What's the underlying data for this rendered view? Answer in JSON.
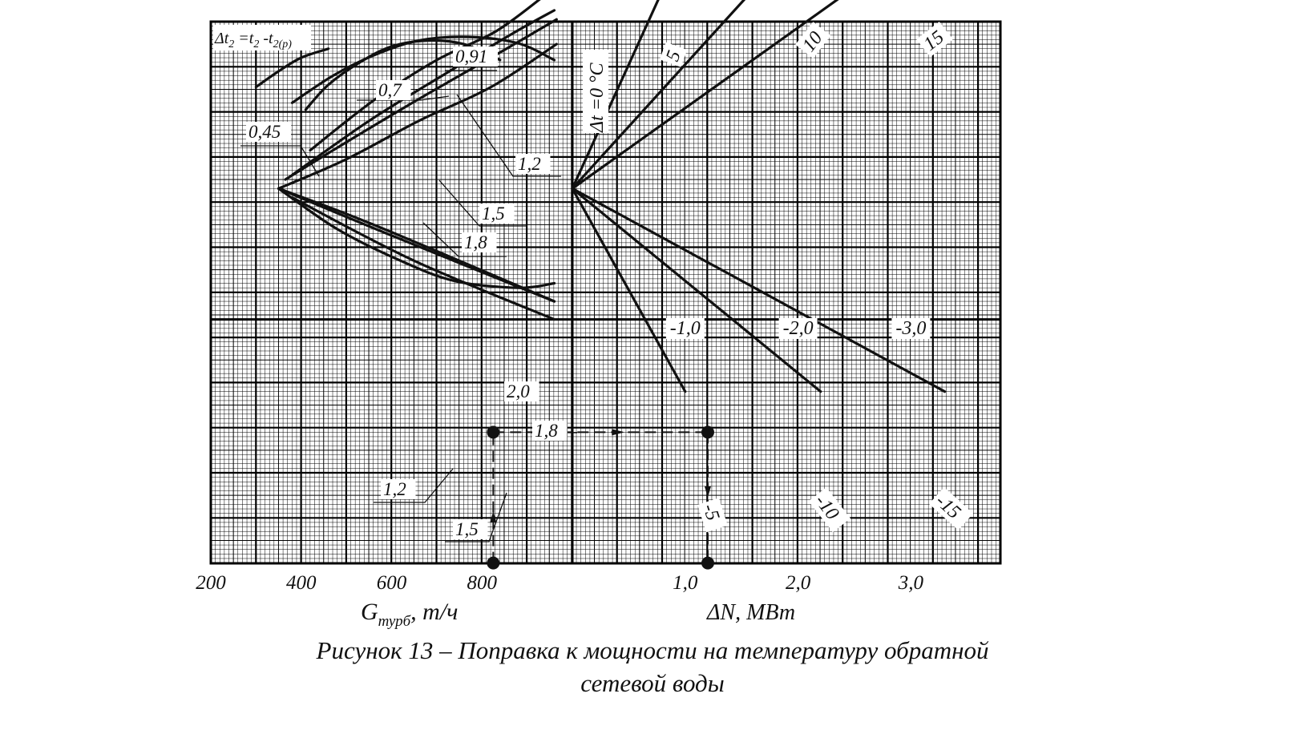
{
  "caption": {
    "line1": "Рисунок 13 – Поправка к мощности на температуру обратной",
    "line2": "сетевой воды"
  },
  "chart_data": {
    "type": "line",
    "grid": true,
    "left_panel": {
      "xlabel_main": "G",
      "xlabel_sub": "турб",
      "xlabel_unit": ", т/ч",
      "xlim": [
        200,
        1000
      ],
      "x_ticks": [
        "200",
        "400",
        "600",
        "800"
      ],
      "formula": {
        "a": "Δt",
        "a_sub": "2",
        "b": " =t",
        "b_sub": "2",
        "c": " -t",
        "c_sub": "2(р)"
      },
      "upper_curves": [
        {
          "label": "0,45",
          "points": [
            [
              300,
              1.45
            ],
            [
              350,
              1.1
            ],
            [
              400,
              0.8
            ],
            [
              460,
              0.6
            ]
          ]
        },
        {
          "label": "0,7",
          "points": [
            [
              410,
              1.95
            ],
            [
              460,
              1.4
            ],
            [
              530,
              0.9
            ],
            [
              600,
              0.55
            ],
            [
              680,
              0.42
            ],
            [
              760,
              0.5
            ],
            [
              840,
              0.85
            ]
          ]
        },
        {
          "label": "0,91",
          "points": [
            [
              380,
              1.8
            ],
            [
              470,
              1.2
            ],
            [
              560,
              0.75
            ],
            [
              660,
              0.42
            ],
            [
              770,
              0.34
            ],
            [
              880,
              0.48
            ],
            [
              960,
              0.85
            ]
          ]
        },
        {
          "label": "0,91",
          "points": [
            [
              420,
              2.85
            ],
            [
              560,
              1.75
            ],
            [
              700,
              0.85
            ],
            [
              830,
              0.22
            ],
            [
              935,
              -0.55
            ]
          ]
        },
        {
          "label": "1,2",
          "points": [
            [
              380,
              3.4
            ],
            [
              550,
              2.2
            ],
            [
              720,
              1.15
            ],
            [
              870,
              0.25
            ],
            [
              960,
              -0.25
            ]
          ]
        },
        {
          "label": "1,5",
          "points": [
            [
              365,
              3.5
            ],
            [
              520,
              2.55
            ],
            [
              680,
              1.6
            ],
            [
              820,
              0.8
            ],
            [
              965,
              -0.05
            ]
          ]
        },
        {
          "label": "1,8",
          "points": [
            [
              350,
              3.7
            ],
            [
              500,
              3.05
            ],
            [
              660,
              2.2
            ],
            [
              820,
              1.45
            ],
            [
              965,
              0.5
            ]
          ]
        }
      ],
      "lower_curves": [
        {
          "label": "2,0",
          "points": [
            [
              350,
              3.7
            ],
            [
              560,
              4.5
            ],
            [
              960,
              6.2
            ]
          ]
        },
        {
          "label": "1,8",
          "points": [
            [
              350,
              3.7
            ],
            [
              590,
              4.7
            ],
            [
              960,
              6.2
            ]
          ]
        },
        {
          "label": "1,5",
          "points": [
            [
              380,
              3.9
            ],
            [
              650,
              5.3
            ],
            [
              960,
              6.6
            ]
          ]
        },
        {
          "label": "1,2",
          "points": [
            [
              350,
              3.7
            ],
            [
              480,
              4.6
            ],
            [
              620,
              5.3
            ],
            [
              740,
              5.75
            ],
            [
              880,
              5.9
            ],
            [
              960,
              5.8
            ]
          ]
        }
      ]
    },
    "right_panel": {
      "xlabel": "ΔN, МВт",
      "origin_label": "Δt  =0 °C",
      "x_ticks_bottom": [
        "1,0",
        "2,0",
        "3,0"
      ],
      "x_ticks_mid": [
        "-1,0",
        "-2,0",
        "-3,0"
      ],
      "lines": [
        {
          "label": "5",
          "from": [
            0,
            3.7
          ],
          "to": [
            1.2,
            -2.9
          ]
        },
        {
          "label": "10",
          "from": [
            0,
            3.7
          ],
          "to": [
            2.4,
            -2.9
          ]
        },
        {
          "label": "15",
          "from": [
            0,
            3.7
          ],
          "to": [
            3.7,
            -2.9
          ]
        },
        {
          "label": "-5",
          "from": [
            0,
            3.7
          ],
          "to": [
            1.0,
            8.2
          ]
        },
        {
          "label": "-10",
          "from": [
            0,
            3.7
          ],
          "to": [
            2.2,
            8.2
          ]
        },
        {
          "label": "-15",
          "from": [
            0,
            3.7
          ],
          "to": [
            3.3,
            8.2
          ]
        }
      ]
    },
    "example": {
      "label_top": "2,0",
      "label_mid": "1,8",
      "label_bottom": "1,5"
    }
  }
}
